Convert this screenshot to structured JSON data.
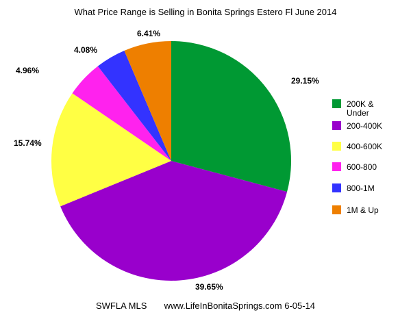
{
  "chart_data": {
    "type": "pie",
    "title": "What Price Range is Selling in Bonita Springs Estero Fl June 2014",
    "categories": [
      "200K & Under",
      "200-400K",
      "400-600K",
      "600-800",
      "800-1M",
      "1M & Up"
    ],
    "legend_lines": [
      [
        "200K &",
        "Under"
      ],
      [
        "200-400K"
      ],
      [
        "400-600K"
      ],
      [
        "600-800"
      ],
      [
        "800-1M"
      ],
      [
        "1M & Up"
      ]
    ],
    "values": [
      29.15,
      39.65,
      15.74,
      4.96,
      4.08,
      6.41
    ],
    "data_labels": [
      "29.15%",
      "39.65%",
      "15.74%",
      "4.96%",
      "4.08%",
      "6.41%"
    ],
    "colors": [
      "#009933",
      "#9900cc",
      "#ffff44",
      "#ff22ee",
      "#3333ff",
      "#ee7f00"
    ],
    "start": "top, clockwise",
    "legend_position": "right"
  },
  "footer": "SWFLA MLS       www.LifeInBonitaSprings.com 6-05-14"
}
